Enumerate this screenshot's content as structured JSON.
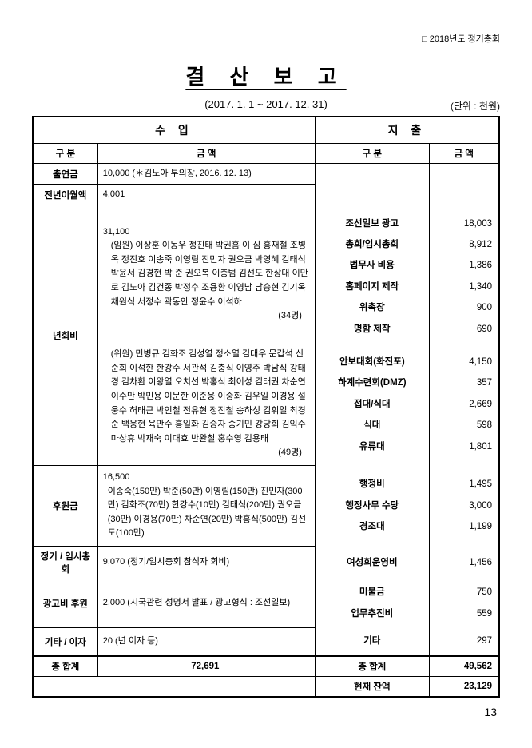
{
  "header": {
    "note": "□ 2018년도 정기총회"
  },
  "title": "결 산 보 고",
  "date_range": "(2017. 1. 1 ~ 2017. 12. 31)",
  "unit_note": "(단위 : 천원)",
  "income": {
    "section_label": "수    입",
    "col_category": "구  분",
    "col_amount": "금   액",
    "items": {
      "contribution": {
        "label": "출연금",
        "value": "10,000 (＊김노아 부의장, 2016. 12. 13)"
      },
      "carryover": {
        "label": "전년이월액",
        "value": "4,001"
      },
      "annual_fee": {
        "label": "년회비",
        "amount": "31,100",
        "officers_intro": "(임원)",
        "officers_list": "이상훈 이동우 정진태 박권흠 이  심 홍재철 조병옥 정진호 이송죽 이영림 진민자 권오금 박영혜 김태식 박윤서 김경현 박  준 권오복 이충범 김선도 한상대 이만로 김노아 김건종 박정수 조용환 이영남 남승현 김기옥 채원식 서정수 곽동안 정윤수 이석하 (34명)",
        "members_intro": "(위원)",
        "members_list": "민병규 김화조 김성열 정소열 김대우 문갑석 신순희 이석한 한강수 서관석 김충식 이영주 박남식 강태경 김차환 이왕열 오치선 박홍식 최이성 김태권 차순연 이수만 박민용 이문한 이준웅 이중화 김우일 이경용 설웅수 허태근 박인철 전유현 정진철 송하성 김휘일 최경순 백웅현 육만수 홍일화 김승자 송기민 강당희 김익수 마상휴 박재숙 이대효 반완철 홍수영 김용태 (49명)"
      },
      "sponsorship": {
        "label": "후원금",
        "amount": "16,500",
        "detail": "이송죽(150만) 박준(50만) 이영림(150만) 진민자(300만) 김화조(70만) 한강수(10만) 김태식(200만) 권오금(30만) 이경용(70만) 차순연(20만) 박홍식(500만) 김선도(100만)"
      },
      "meeting": {
        "label": "정기 / 임시총회",
        "value": "9,070  (정기/임시총회 참석자 회비)"
      },
      "ad_support": {
        "label": "광고비 후원",
        "value": "2,000 (시국관련 성명서 발표 / 광고형식 : 조선일보)"
      },
      "other": {
        "label": "기타 / 이자",
        "value": "20 (년 이자 등)"
      }
    },
    "total_label": "총 합계",
    "total_value": "72,691"
  },
  "expense": {
    "section_label": "지    출",
    "col_category": "구  분",
    "col_amount": "금  액",
    "items": [
      {
        "label": "조선일보 광고",
        "value": "18,003"
      },
      {
        "label": "총회/임시총회",
        "value": "8,912"
      },
      {
        "label": "법무사 비용",
        "value": "1,386"
      },
      {
        "label": "홈페이지 제작",
        "value": "1,340"
      },
      {
        "label": "위촉장",
        "value": "900"
      },
      {
        "label": "명함 제작",
        "value": "690"
      },
      {
        "label": "안보대회(화진포)",
        "value": "4,150"
      },
      {
        "label": "하계수련회(DMZ)",
        "value": "357"
      },
      {
        "label": "접대/식대",
        "value": "2,669"
      },
      {
        "label": "식대",
        "value": "598"
      },
      {
        "label": "유류대",
        "value": "1,801"
      },
      {
        "label": "행정비",
        "value": "1,495"
      },
      {
        "label": "행정사무 수당",
        "value": "3,000"
      },
      {
        "label": "경조대",
        "value": "1,199"
      },
      {
        "label": "여성회운영비",
        "value": "1,456"
      },
      {
        "label": "미불금",
        "value": "750"
      },
      {
        "label": "업무추진비",
        "value": "559"
      },
      {
        "label": "기타",
        "value": "297"
      }
    ],
    "total_label": "총 합계",
    "total_value": "49,562",
    "balance_label": "현재 잔액",
    "balance_value": "23,129"
  },
  "page_number": "13"
}
